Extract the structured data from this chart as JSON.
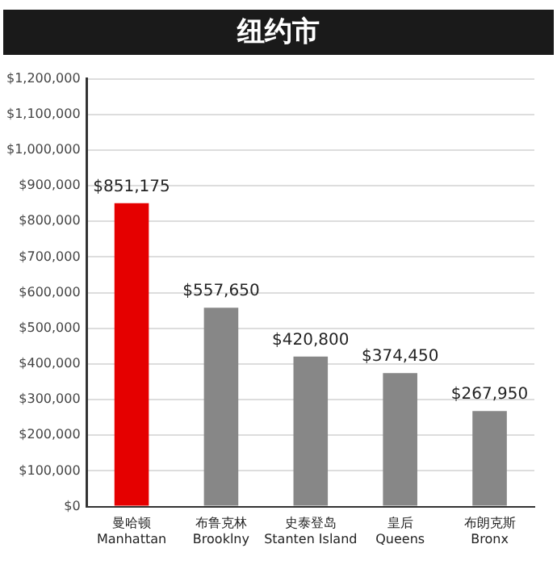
{
  "chart_data": {
    "type": "bar",
    "title": "纽约市",
    "categories": [
      "曼哈顿\nManhattan",
      "布鲁克林\nBrooklny",
      "史泰登岛\nStanten Island",
      "皇后\nQueens",
      "布朗克斯\nBronx"
    ],
    "values": [
      851175,
      557650,
      420800,
      374450,
      267950
    ],
    "colors": [
      "#e50000",
      "#878787",
      "#878787",
      "#878787",
      "#878787"
    ],
    "value_labels": [
      "$851,175",
      "$557,650",
      "$420,800",
      "$374,450",
      "$267,950"
    ],
    "ylim": [
      0,
      1200000
    ],
    "yticks": [
      {
        "value": 0,
        "label": "$0"
      },
      {
        "value": 100000,
        "label": "$100,000"
      },
      {
        "value": 200000,
        "label": "$200,000"
      },
      {
        "value": 300000,
        "label": "$300,000"
      },
      {
        "value": 400000,
        "label": "$400,000"
      },
      {
        "value": 500000,
        "label": "$500,000"
      },
      {
        "value": 600000,
        "label": "$600,000"
      },
      {
        "value": 700000,
        "label": "$700,000"
      },
      {
        "value": 800000,
        "label": "$800,000"
      },
      {
        "value": 900000,
        "label": "$900,000"
      },
      {
        "value": 1000000,
        "label": "$1,000,000"
      },
      {
        "value": 1100000,
        "label": "$1,100,000"
      },
      {
        "value": 1200000,
        "label": "$1,200,000"
      }
    ],
    "grid": "y",
    "legend": false
  }
}
